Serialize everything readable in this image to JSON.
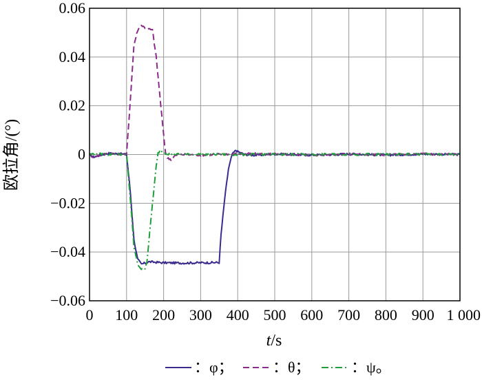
{
  "chart_data": {
    "type": "line",
    "xlabel_italic": "t",
    "xlabel_unit": "/s",
    "ylabel": "欧拉角/(°)",
    "xlim": [
      0,
      1000
    ],
    "ylim": [
      -0.06,
      0.06
    ],
    "x_ticks": [
      0,
      100,
      200,
      300,
      400,
      500,
      600,
      700,
      800,
      900,
      1000
    ],
    "x_tick_labels": [
      "0",
      "100",
      "200",
      "300",
      "400",
      "500",
      "600",
      "700",
      "800",
      "900",
      "1 000"
    ],
    "y_ticks": [
      0.06,
      0.04,
      0.02,
      0,
      -0.02,
      -0.04,
      -0.06
    ],
    "y_tick_labels": [
      "0.06",
      "0.04",
      "0.02",
      "0",
      "−0.02",
      "−0.04",
      "−0.06"
    ],
    "grid": true,
    "legend_position": "bottom",
    "series": [
      {
        "name": "φ",
        "legend_label": "：φ；",
        "color": "#3b2a8c",
        "dash": "solid",
        "x": [
          0,
          10,
          50,
          80,
          100,
          110,
          120,
          130,
          140,
          160,
          200,
          250,
          300,
          350,
          355,
          365,
          375,
          385,
          395,
          400,
          420,
          450,
          500,
          600,
          700,
          800,
          900,
          1000
        ],
        "y": [
          0,
          -0.001,
          0.0005,
          0.0003,
          0,
          -0.015,
          -0.035,
          -0.043,
          -0.045,
          -0.044,
          -0.0444,
          -0.0445,
          -0.0444,
          -0.0443,
          -0.033,
          -0.018,
          -0.006,
          0,
          0.0018,
          0.0012,
          0,
          -0.0003,
          0.0002,
          -0.0002,
          0.0002,
          -0.0002,
          0.0002,
          0
        ]
      },
      {
        "name": "θ",
        "legend_label": "：θ；",
        "color": "#8b2a8b",
        "dash": "dashed",
        "x": [
          0,
          10,
          50,
          80,
          100,
          110,
          120,
          130,
          140,
          150,
          160,
          170,
          180,
          190,
          200,
          205,
          210,
          220,
          230,
          250,
          300,
          400,
          500,
          600,
          700,
          800,
          900,
          1000
        ],
        "y": [
          0,
          -0.001,
          0.0005,
          0.0002,
          0,
          0.022,
          0.045,
          0.051,
          0.053,
          0.052,
          0.0515,
          0.051,
          0.04,
          0.024,
          0.008,
          0.001,
          -0.0015,
          -0.002,
          -0.0005,
          0,
          -0.0002,
          0.0003,
          0.0002,
          -0.0002,
          0.0002,
          -0.0001,
          0.0003,
          0
        ]
      },
      {
        "name": "ψ",
        "legend_label": "：ψ。",
        "color": "#1f9e3a",
        "dash": "dashdot",
        "x": [
          0,
          10,
          50,
          80,
          100,
          110,
          120,
          130,
          140,
          150,
          155,
          160,
          170,
          180,
          185,
          190,
          200,
          210,
          250,
          300,
          400,
          500,
          600,
          700,
          800,
          900,
          1000
        ],
        "y": [
          0,
          0.0003,
          0,
          0.0002,
          0,
          -0.018,
          -0.038,
          -0.045,
          -0.047,
          -0.0465,
          -0.044,
          -0.036,
          -0.02,
          -0.005,
          0.0005,
          0.0015,
          0.001,
          0.0003,
          0,
          0.0001,
          0,
          0.0001,
          0,
          0.0001,
          0,
          0.0001,
          0
        ]
      }
    ]
  }
}
